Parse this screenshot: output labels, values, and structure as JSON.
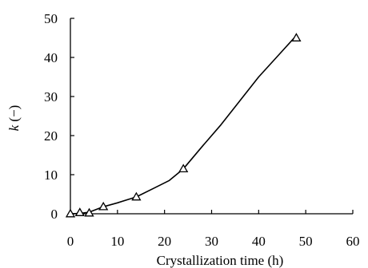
{
  "chart_data": {
    "type": "line",
    "title": "",
    "xlabel": "Crystallization time (h)",
    "ylabel_var": "k",
    "ylabel_unit": " (−)",
    "xlim": [
      0,
      60
    ],
    "ylim": [
      0,
      50
    ],
    "xticks": [
      0,
      10,
      20,
      30,
      40,
      50,
      60
    ],
    "yticks": [
      0,
      10,
      20,
      30,
      40,
      50
    ],
    "grid": false,
    "series": [
      {
        "marker": "triangle-open",
        "color": "#000000",
        "points": [
          {
            "x": 0,
            "y": 0
          },
          {
            "x": 2,
            "y": 0.3
          },
          {
            "x": 4,
            "y": 0.2
          },
          {
            "x": 7,
            "y": 1.8
          },
          {
            "x": 14,
            "y": 4.3
          },
          {
            "x": 24,
            "y": 11.5
          },
          {
            "x": 48,
            "y": 45
          }
        ],
        "curve": [
          {
            "x": 0,
            "y": 0
          },
          {
            "x": 2,
            "y": 0.1
          },
          {
            "x": 4,
            "y": 0.4
          },
          {
            "x": 7,
            "y": 1.8
          },
          {
            "x": 10,
            "y": 2.8
          },
          {
            "x": 14,
            "y": 4.3
          },
          {
            "x": 18,
            "y": 6.7
          },
          {
            "x": 21,
            "y": 8.5
          },
          {
            "x": 24,
            "y": 11.5
          },
          {
            "x": 28,
            "y": 17.2
          },
          {
            "x": 32,
            "y": 22.8
          },
          {
            "x": 36,
            "y": 28.9
          },
          {
            "x": 40,
            "y": 35.0
          },
          {
            "x": 44,
            "y": 40.3
          },
          {
            "x": 48,
            "y": 45.6
          }
        ]
      }
    ]
  }
}
